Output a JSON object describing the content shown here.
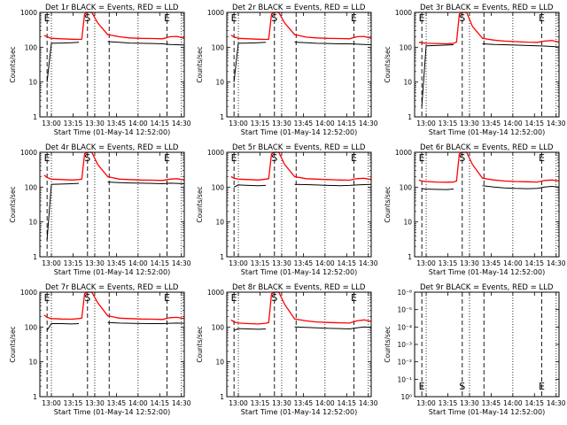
{
  "figure": {
    "ylabel": "Counts/sec",
    "xlabel": "Start Time (01-May-14 12:52:00)",
    "xticks": [
      "13:00",
      "13:15",
      "13:30",
      "13:45",
      "14:00",
      "14:15",
      "14:30"
    ],
    "x_start_min": 0,
    "x_end_min": 100,
    "marker_labels": [
      "E",
      "S",
      "E"
    ],
    "colors": {
      "events": "#000000",
      "lld": "#ff0000",
      "marker": "#000000"
    }
  },
  "chart_data": [
    {
      "type": "line",
      "title": "Det 1r BLACK = Events, RED = LLD",
      "scale": "log",
      "ylim": [
        1,
        1000
      ],
      "yticks": [
        "1",
        "10",
        "100",
        "1000"
      ],
      "x": [
        0,
        3,
        5,
        8,
        15,
        22,
        27,
        29,
        31,
        33,
        36,
        40,
        47,
        55,
        62,
        70,
        78,
        85,
        90,
        95,
        100
      ],
      "series": [
        {
          "name": "Events",
          "values": [
            null,
            null,
            10,
            130,
            132,
            135,
            138,
            null,
            null,
            null,
            null,
            null,
            145,
            138,
            132,
            130,
            128,
            125,
            120,
            118,
            115
          ]
        },
        {
          "name": "LLD",
          "values": [
            null,
            220,
            200,
            180,
            175,
            170,
            168,
            170,
            900,
            1000,
            1000,
            500,
            230,
            200,
            185,
            180,
            178,
            175,
            200,
            205,
            180
          ]
        }
      ],
      "markers": {
        "E": 5,
        "S": 33,
        "E2": 88
      }
    },
    {
      "type": "line",
      "title": "Det 2r BLACK = Events, RED = LLD",
      "scale": "log",
      "ylim": [
        1,
        1000
      ],
      "yticks": [
        "1",
        "10",
        "100",
        "1000"
      ],
      "x": [
        0,
        3,
        5,
        8,
        15,
        22,
        27,
        29,
        31,
        33,
        36,
        40,
        47,
        55,
        62,
        70,
        78,
        85,
        90,
        95,
        100
      ],
      "series": [
        {
          "name": "Events",
          "values": [
            null,
            null,
            10,
            130,
            132,
            135,
            138,
            null,
            null,
            null,
            null,
            null,
            140,
            135,
            130,
            128,
            125,
            125,
            122,
            120,
            118
          ]
        },
        {
          "name": "LLD",
          "values": [
            null,
            220,
            200,
            180,
            175,
            170,
            168,
            170,
            900,
            1000,
            1000,
            500,
            230,
            195,
            185,
            180,
            178,
            175,
            200,
            205,
            180
          ]
        }
      ],
      "markers": {
        "E": 5,
        "S": 33,
        "E2": 88
      }
    },
    {
      "type": "line",
      "title": "Det 3r BLACK = Events, RED = LLD",
      "scale": "log",
      "ylim": [
        1,
        1000
      ],
      "yticks": [
        "1",
        "10",
        "100",
        "1000"
      ],
      "x": [
        0,
        3,
        5,
        8,
        15,
        22,
        27,
        29,
        31,
        33,
        36,
        40,
        47,
        55,
        62,
        70,
        78,
        85,
        90,
        95,
        100
      ],
      "series": [
        {
          "name": "Events",
          "values": [
            null,
            null,
            2,
            110,
            112,
            115,
            118,
            null,
            null,
            null,
            null,
            null,
            125,
            120,
            118,
            115,
            112,
            110,
            108,
            105,
            102
          ]
        },
        {
          "name": "LLD",
          "values": [
            null,
            140,
            135,
            130,
            128,
            125,
            130,
            140,
            900,
            1000,
            1000,
            400,
            180,
            160,
            150,
            145,
            140,
            138,
            150,
            155,
            140
          ]
        }
      ],
      "markers": {
        "E": 5,
        "S": 33,
        "E2": 88
      }
    },
    {
      "type": "line",
      "title": "Det 4r BLACK = Events, RED = LLD",
      "scale": "log",
      "ylim": [
        1,
        1000
      ],
      "yticks": [
        "1",
        "10",
        "100",
        "1000"
      ],
      "x": [
        0,
        3,
        5,
        8,
        15,
        22,
        27,
        29,
        31,
        33,
        36,
        40,
        47,
        55,
        62,
        70,
        78,
        85,
        90,
        95,
        100
      ],
      "series": [
        {
          "name": "Events",
          "values": [
            null,
            null,
            3,
            120,
            122,
            125,
            128,
            null,
            null,
            null,
            null,
            null,
            140,
            135,
            132,
            130,
            128,
            125,
            130,
            128,
            125
          ]
        },
        {
          "name": "LLD",
          "values": [
            null,
            220,
            190,
            170,
            165,
            160,
            165,
            170,
            900,
            1000,
            1000,
            450,
            200,
            170,
            165,
            160,
            158,
            155,
            170,
            175,
            160
          ]
        }
      ],
      "markers": {
        "E": 5,
        "S": 33,
        "E2": 88
      }
    },
    {
      "type": "line",
      "title": "Det 5r BLACK = Events, RED = LLD",
      "scale": "log",
      "ylim": [
        1,
        1000
      ],
      "yticks": [
        "1",
        "10",
        "100",
        "1000"
      ],
      "x": [
        0,
        3,
        5,
        8,
        15,
        22,
        27,
        29,
        31,
        33,
        36,
        40,
        47,
        55,
        62,
        70,
        78,
        85,
        90,
        95,
        100
      ],
      "series": [
        {
          "name": "Events",
          "values": [
            null,
            null,
            100,
            115,
            112,
            110,
            112,
            null,
            null,
            null,
            null,
            null,
            120,
            118,
            115,
            112,
            110,
            112,
            115,
            118,
            120
          ]
        },
        {
          "name": "LLD",
          "values": [
            null,
            200,
            180,
            170,
            165,
            160,
            170,
            175,
            900,
            1000,
            1000,
            450,
            200,
            175,
            170,
            165,
            160,
            158,
            175,
            180,
            165
          ]
        }
      ],
      "markers": {
        "E": 5,
        "S": 33,
        "E2": 88
      }
    },
    {
      "type": "line",
      "title": "Det 6r BLACK = Events, RED = LLD",
      "scale": "log",
      "ylim": [
        1,
        1000
      ],
      "yticks": [
        "1",
        "10",
        "100",
        "1000"
      ],
      "x": [
        0,
        3,
        5,
        8,
        15,
        22,
        27,
        29,
        31,
        33,
        36,
        40,
        47,
        55,
        62,
        70,
        78,
        85,
        90,
        95,
        100
      ],
      "series": [
        {
          "name": "Events",
          "values": [
            null,
            null,
            90,
            88,
            86,
            85,
            88,
            null,
            null,
            null,
            null,
            null,
            110,
            100,
            95,
            92,
            90,
            92,
            100,
            105,
            100
          ]
        },
        {
          "name": "LLD",
          "values": [
            null,
            160,
            150,
            145,
            140,
            138,
            140,
            150,
            900,
            1000,
            1000,
            450,
            180,
            160,
            150,
            145,
            142,
            140,
            155,
            160,
            150
          ]
        }
      ],
      "markers": {
        "E": 5,
        "S": 33,
        "E2": 88
      }
    },
    {
      "type": "line",
      "title": "Det 7r BLACK = Events, RED = LLD",
      "scale": "log",
      "ylim": [
        1,
        1000
      ],
      "yticks": [
        "1",
        "10",
        "100",
        "1000"
      ],
      "x": [
        0,
        3,
        5,
        8,
        15,
        22,
        27,
        29,
        31,
        33,
        36,
        40,
        47,
        55,
        62,
        70,
        78,
        85,
        90,
        95,
        100
      ],
      "series": [
        {
          "name": "Events",
          "values": [
            null,
            null,
            80,
            125,
            125,
            122,
            125,
            null,
            null,
            null,
            null,
            null,
            135,
            130,
            128,
            126,
            125,
            125,
            128,
            130,
            128
          ]
        },
        {
          "name": "LLD",
          "values": [
            null,
            220,
            190,
            175,
            170,
            168,
            175,
            180,
            900,
            1000,
            1000,
            500,
            210,
            180,
            175,
            170,
            168,
            165,
            185,
            190,
            175
          ]
        }
      ],
      "markers": {
        "E": 5,
        "S": 33,
        "E2": 88
      }
    },
    {
      "type": "line",
      "title": "Det 8r BLACK = Events, RED = LLD",
      "scale": "log",
      "ylim": [
        1,
        1000
      ],
      "yticks": [
        "1",
        "10",
        "100",
        "1000"
      ],
      "x": [
        0,
        3,
        5,
        8,
        15,
        22,
        27,
        29,
        31,
        33,
        36,
        40,
        47,
        55,
        62,
        70,
        78,
        85,
        90,
        95,
        100
      ],
      "series": [
        {
          "name": "Events",
          "values": [
            null,
            null,
            80,
            90,
            88,
            86,
            88,
            null,
            null,
            null,
            null,
            null,
            100,
            98,
            95,
            92,
            90,
            88,
            95,
            100,
            98
          ]
        },
        {
          "name": "LLD",
          "values": [
            null,
            160,
            140,
            130,
            125,
            122,
            128,
            135,
            900,
            1000,
            1000,
            450,
            170,
            150,
            140,
            135,
            132,
            130,
            150,
            160,
            145
          ]
        }
      ],
      "markers": {
        "E": 5,
        "S": 33,
        "E2": 88
      }
    },
    {
      "type": "line",
      "title": "Det 9r BLACK = Events, RED = LLD",
      "scale": "linear",
      "ylim": [
        0,
        1
      ],
      "yticks": [
        "10⁰",
        "10⁻¹",
        "10⁻²",
        "10⁻³",
        "10⁻⁴",
        "10⁻⁵",
        "10⁻⁶"
      ],
      "x": [],
      "series": [
        {
          "name": "Events",
          "values": []
        },
        {
          "name": "LLD",
          "values": []
        }
      ],
      "markers": {
        "E": 5,
        "S": 33,
        "E2": 88
      }
    }
  ]
}
